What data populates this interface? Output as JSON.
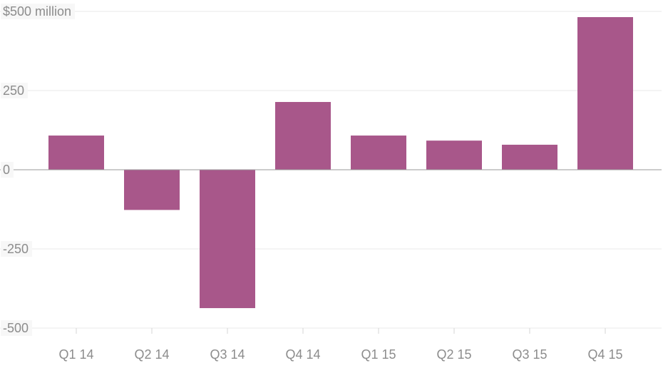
{
  "chart_data": {
    "type": "bar",
    "categories": [
      "Q1 14",
      "Q2 14",
      "Q3 14",
      "Q4 14",
      "Q1 15",
      "Q2 15",
      "Q3 15",
      "Q4 15"
    ],
    "values": [
      108,
      -127,
      -437,
      214,
      108,
      92,
      79,
      482
    ],
    "ylim": [
      -500,
      500
    ],
    "yticks": [
      500,
      250,
      0,
      -250,
      -500
    ],
    "ytick_labels": [
      "$500 million",
      "250",
      "0",
      "-250",
      "-500"
    ],
    "grid": true,
    "bar_color": "#a8578a",
    "title": "",
    "xlabel": "",
    "ylabel": ""
  }
}
